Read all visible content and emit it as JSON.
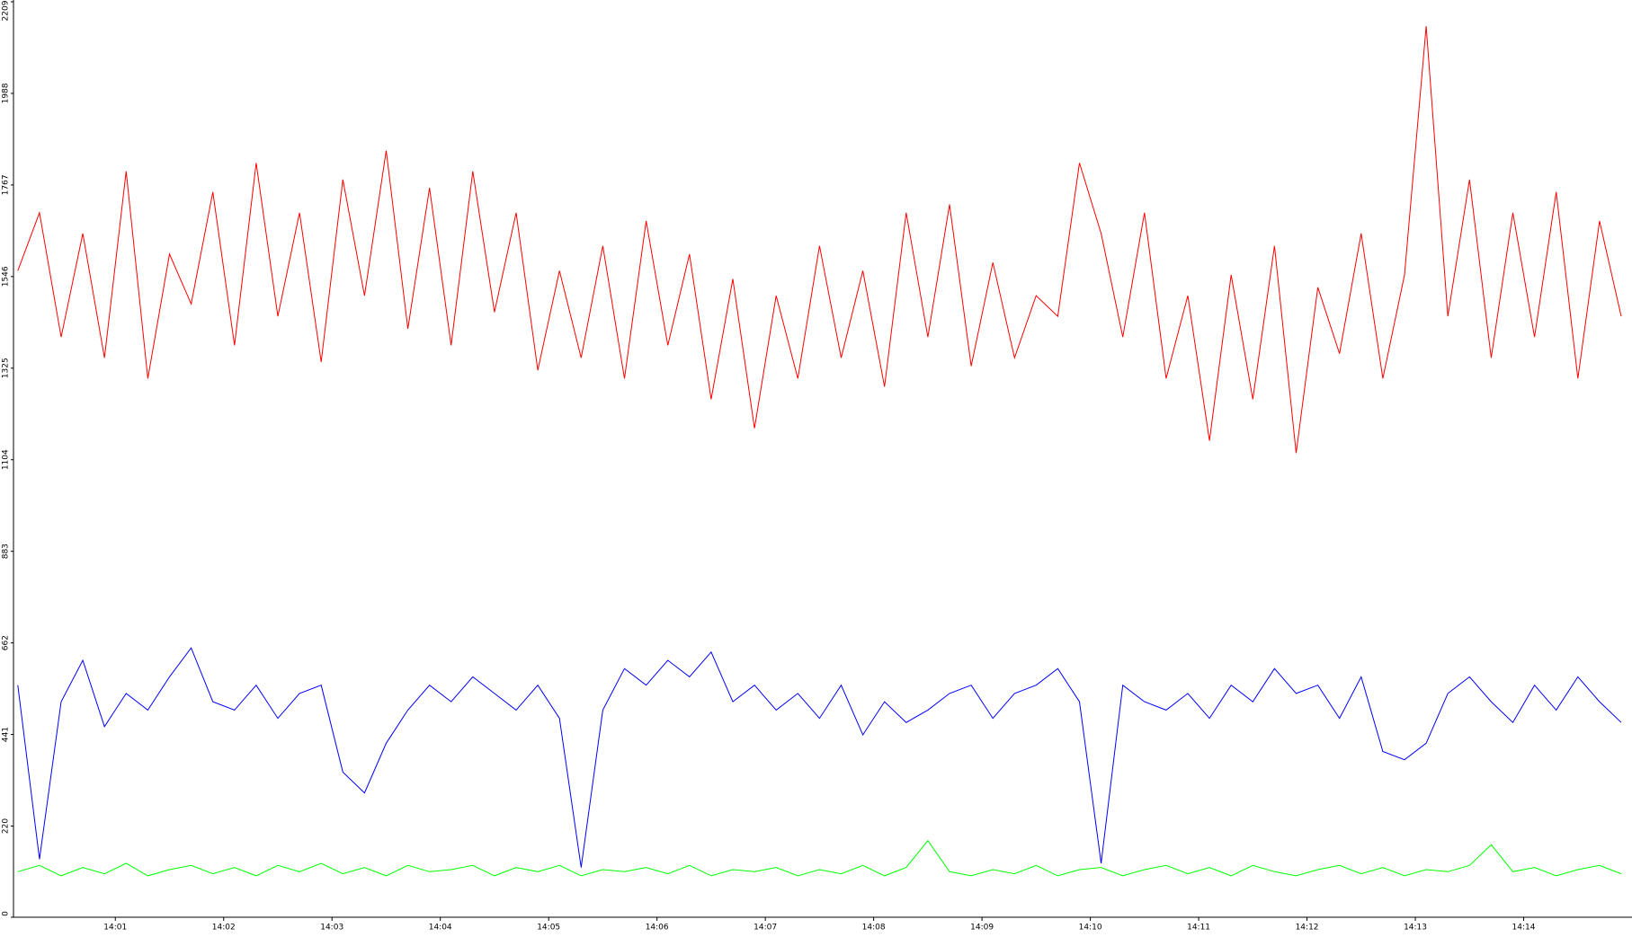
{
  "chart_data": {
    "type": "line",
    "x": [
      0.1,
      0.3,
      0.5,
      0.7,
      0.9,
      1.1,
      1.3,
      1.5,
      1.7,
      1.9,
      2.1,
      2.3,
      2.5,
      2.7,
      2.9,
      3.1,
      3.3,
      3.5,
      3.7,
      3.9,
      4.1,
      4.3,
      4.5,
      4.7,
      4.9,
      5.1,
      5.3,
      5.5,
      5.7,
      5.9,
      6.1,
      6.3,
      6.5,
      6.7,
      6.9,
      7.1,
      7.3,
      7.5,
      7.7,
      7.9,
      8.1,
      8.3,
      8.5,
      8.7,
      8.9,
      9.1,
      9.3,
      9.5,
      9.7,
      9.9,
      10.1,
      10.3,
      10.5,
      10.7,
      10.9,
      11.1,
      11.3,
      11.5,
      11.7,
      11.9,
      12.1,
      12.3,
      12.5,
      12.7,
      12.9,
      13.1,
      13.3,
      13.5,
      13.7,
      13.9,
      14.1,
      14.3,
      14.5,
      14.7,
      14.9
    ],
    "series": [
      {
        "color": "#ff0000",
        "values": [
          1560,
          1700,
          1400,
          1650,
          1350,
          1800,
          1300,
          1600,
          1480,
          1750,
          1380,
          1820,
          1450,
          1700,
          1340,
          1780,
          1500,
          1850,
          1420,
          1760,
          1380,
          1800,
          1460,
          1700,
          1320,
          1560,
          1350,
          1620,
          1300,
          1680,
          1380,
          1600,
          1250,
          1540,
          1180,
          1500,
          1300,
          1620,
          1350,
          1560,
          1280,
          1700,
          1400,
          1720,
          1330,
          1580,
          1350,
          1500,
          1450,
          1820,
          1650,
          1400,
          1700,
          1300,
          1500,
          1150,
          1550,
          1250,
          1620,
          1120,
          1520,
          1360,
          1650,
          1300,
          1550,
          2150,
          1450,
          1780,
          1350,
          1700,
          1400,
          1750,
          1300,
          1680,
          1450
        ]
      },
      {
        "color": "#0000ff",
        "values": [
          560,
          140,
          520,
          620,
          460,
          540,
          500,
          580,
          650,
          520,
          500,
          560,
          480,
          540,
          560,
          350,
          300,
          420,
          500,
          560,
          520,
          580,
          540,
          500,
          560,
          480,
          120,
          500,
          600,
          560,
          620,
          580,
          640,
          520,
          560,
          500,
          540,
          480,
          560,
          440,
          520,
          470,
          500,
          540,
          560,
          480,
          540,
          560,
          600,
          520,
          130,
          560,
          520,
          500,
          540,
          480,
          560,
          520,
          600,
          540,
          560,
          480,
          580,
          400,
          380,
          420,
          540,
          580,
          520,
          470,
          560,
          500,
          580,
          520,
          470
        ]
      },
      {
        "color": "#00ff00",
        "values": [
          110,
          125,
          100,
          120,
          105,
          130,
          100,
          115,
          125,
          105,
          120,
          100,
          125,
          110,
          130,
          105,
          120,
          100,
          125,
          110,
          115,
          125,
          100,
          120,
          110,
          125,
          100,
          115,
          110,
          120,
          105,
          125,
          100,
          115,
          110,
          120,
          100,
          115,
          105,
          125,
          100,
          120,
          185,
          110,
          100,
          115,
          105,
          125,
          100,
          115,
          120,
          100,
          115,
          125,
          105,
          120,
          100,
          125,
          110,
          100,
          115,
          125,
          105,
          120,
          100,
          115,
          110,
          125,
          175,
          110,
          120,
          100,
          115,
          125,
          105
        ]
      }
    ],
    "xlim": [
      0.06,
      15.0
    ],
    "xticks": [
      {
        "value": 1,
        "label": "14:01"
      },
      {
        "value": 2,
        "label": "14:02"
      },
      {
        "value": 3,
        "label": "14:03"
      },
      {
        "value": 4,
        "label": "14:04"
      },
      {
        "value": 5,
        "label": "14:05"
      },
      {
        "value": 6,
        "label": "14:06"
      },
      {
        "value": 7,
        "label": "14:07"
      },
      {
        "value": 8,
        "label": "14:08"
      },
      {
        "value": 9,
        "label": "14:09"
      },
      {
        "value": 10,
        "label": "14:10"
      },
      {
        "value": 11,
        "label": "14:11"
      },
      {
        "value": 12,
        "label": "14:12"
      },
      {
        "value": 13,
        "label": "14:13"
      },
      {
        "value": 14,
        "label": "14:14"
      }
    ],
    "ylim": [
      0,
      2209
    ],
    "yticks": [
      0,
      220,
      441,
      662,
      883,
      1104,
      1325,
      1546,
      1767,
      1988,
      2209
    ]
  }
}
